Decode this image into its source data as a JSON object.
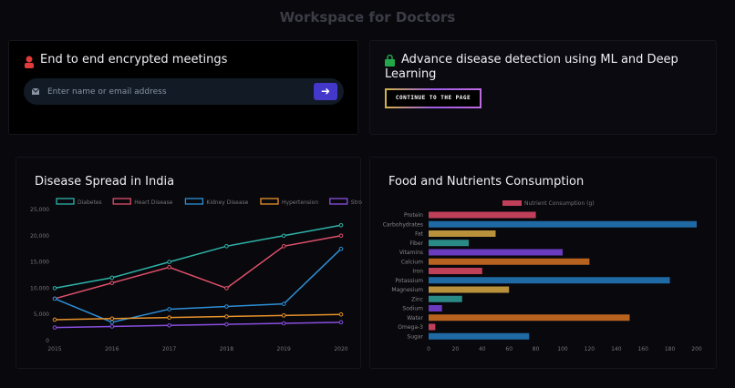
{
  "page_title": "Workspace for Doctors",
  "meetings": {
    "title": "End to end encrypted meetings",
    "icon": "user-icon",
    "input_placeholder": "Enter name or email address",
    "input_icon": "envelope-icon",
    "submit_icon": "arrow-right-icon",
    "accent": "#4338ca"
  },
  "detection": {
    "title": "Advance disease detection using ML and Deep Learning",
    "icon": "lock-icon",
    "button_label": "CONTINUE TO THE PAGE"
  },
  "chart_data": [
    {
      "type": "line",
      "title": "Disease Spread in India",
      "xlabel": "",
      "ylabel": "",
      "legend": "top",
      "categories": [
        "2015",
        "2016",
        "2017",
        "2018",
        "2019",
        "2020"
      ],
      "ylim": [
        0,
        25000
      ],
      "yticks": [
        "0",
        "5,000",
        "10,000",
        "15,000",
        "20,000",
        "25,000"
      ],
      "series": [
        {
          "name": "Diabetes",
          "color": "#2fb3a8",
          "values": [
            10000,
            12000,
            15000,
            18000,
            20000,
            22000
          ]
        },
        {
          "name": "Heart Disease",
          "color": "#e0506a",
          "values": [
            8000,
            11000,
            14000,
            10000,
            18000,
            20000
          ]
        },
        {
          "name": "Kidney Disease",
          "color": "#2e8fd6",
          "values": [
            8000,
            3500,
            6000,
            6500,
            7000,
            17500
          ]
        },
        {
          "name": "Hypertension",
          "color": "#e8922a",
          "values": [
            4000,
            4200,
            4400,
            4600,
            4800,
            5000
          ]
        },
        {
          "name": "Stroke",
          "color": "#8a4fe0",
          "values": [
            2500,
            2700,
            2900,
            3100,
            3300,
            3500
          ]
        }
      ]
    },
    {
      "type": "bar",
      "orientation": "horizontal",
      "title": "Food and Nutrients Consumption",
      "legend": "top",
      "series_name": "Nutrient Consumption (g)",
      "categories": [
        "Protein",
        "Carbohydrates",
        "Fat",
        "Fiber",
        "Vitamins",
        "Calcium",
        "Iron",
        "Potassium",
        "Magnesium",
        "Zinc",
        "Sodium",
        "Water",
        "Omega-3",
        "Sugar"
      ],
      "values": [
        80,
        200,
        50,
        30,
        100,
        120,
        40,
        180,
        60,
        25,
        10,
        150,
        5,
        75
      ],
      "colors": [
        "#c0405a",
        "#1f6aa5",
        "#b8913a",
        "#2a8a86",
        "#6a3bbf",
        "#b8621f"
      ],
      "xlim": [
        0,
        200
      ],
      "xticks": [
        "0",
        "20",
        "40",
        "60",
        "80",
        "100",
        "120",
        "140",
        "160",
        "180",
        "200"
      ]
    }
  ]
}
